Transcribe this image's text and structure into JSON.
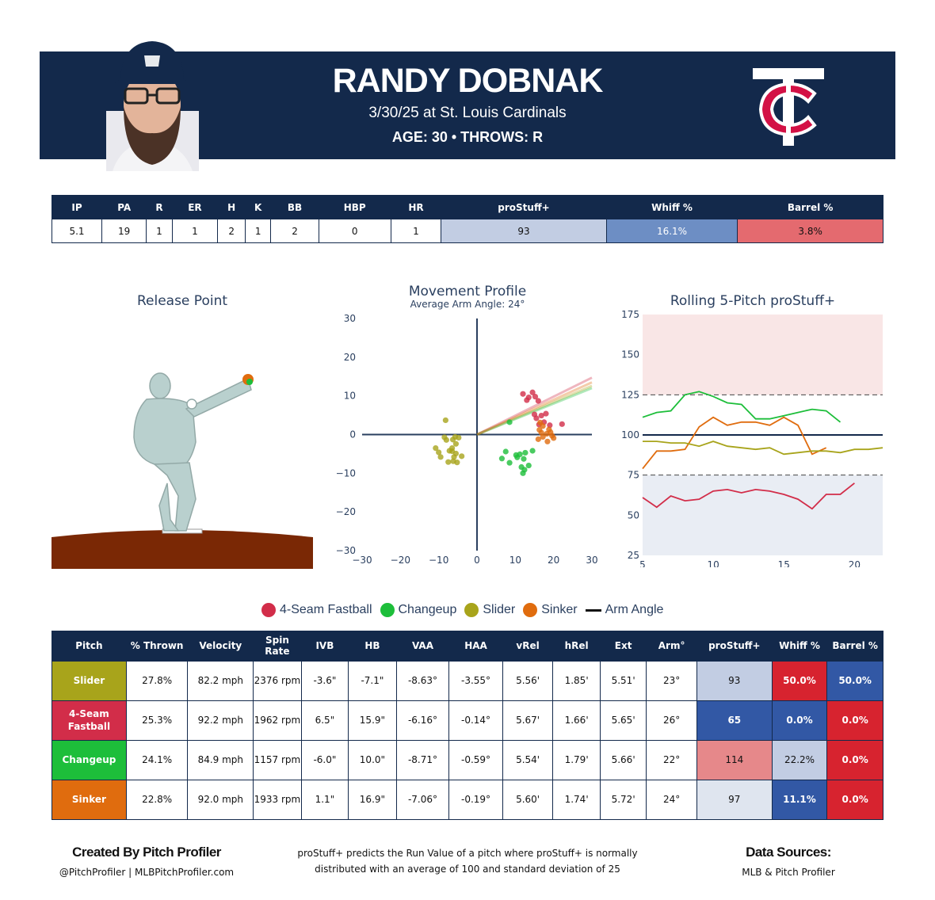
{
  "header": {
    "player_name": "RANDY DOBNAK",
    "game_line": "3/30/25 at St. Louis Cardinals",
    "bio_line": "AGE: 30 • THROWS: R",
    "logo_icon": "twins-tc-logo-icon",
    "headshot_icon": "player-headshot-icon",
    "bg_color": "#13294b"
  },
  "summary": {
    "headers": [
      "IP",
      "PA",
      "R",
      "ER",
      "H",
      "K",
      "BB",
      "HBP",
      "HR",
      "proStuff+",
      "Whiff %",
      "Barrel %"
    ],
    "values": [
      "5.1",
      "19",
      "1",
      "1",
      "2",
      "1",
      "2",
      "0",
      "1",
      "93",
      "16.1%",
      "3.8%"
    ],
    "value_colors": [
      "#ffffff",
      "#ffffff",
      "#ffffff",
      "#ffffff",
      "#ffffff",
      "#ffffff",
      "#ffffff",
      "#ffffff",
      "#ffffff",
      "#c2cde3",
      "#6d8ec4",
      "#e46a6f"
    ]
  },
  "pitch_types": [
    {
      "name": "4-Seam Fastball",
      "color": "#d22d49"
    },
    {
      "name": "Changeup",
      "color": "#1dbe3a"
    },
    {
      "name": "Slider",
      "color": "#a8a41b"
    },
    {
      "name": "Sinker",
      "color": "#e06c0e"
    }
  ],
  "legend": {
    "arm_angle_label": "Arm Angle"
  },
  "release_point": {
    "title": "Release Point"
  },
  "chart_data": [
    {
      "type": "scatter",
      "title": "Movement Profile",
      "subtitle": "Average Arm Angle: 24°",
      "xlim": [
        -30,
        30
      ],
      "ylim": [
        -30,
        30
      ],
      "xticks": [
        -30,
        -20,
        -10,
        0,
        10,
        20,
        30
      ],
      "yticks": [
        -30,
        -20,
        -10,
        0,
        10,
        20,
        30
      ],
      "arm_angle_lines": [
        {
          "series": "Slider",
          "slope": 0.42
        },
        {
          "series": "4-Seam Fastball",
          "slope": 0.49
        },
        {
          "series": "Changeup",
          "slope": 0.4
        },
        {
          "series": "Sinker",
          "slope": 0.45
        }
      ],
      "series": [
        {
          "name": "4-Seam Fastball",
          "points": [
            [
              12,
              10.5
            ],
            [
              13.5,
              9.6
            ],
            [
              14.5,
              10.9
            ],
            [
              15.2,
              9.8
            ],
            [
              16,
              8.7
            ],
            [
              13,
              8.9
            ],
            [
              15.5,
              4.2
            ],
            [
              16.8,
              4.9
            ],
            [
              17.5,
              3.2
            ],
            [
              16.2,
              2.6
            ],
            [
              18,
              5.4
            ],
            [
              19,
              2.4
            ],
            [
              22.2,
              2.7
            ],
            [
              15,
              5.2
            ]
          ]
        },
        {
          "name": "Changeup",
          "points": [
            [
              8.5,
              3.2
            ],
            [
              7.5,
              -4.4
            ],
            [
              6.5,
              -6.2
            ],
            [
              8.5,
              -7.3
            ],
            [
              10.2,
              -5.3
            ],
            [
              11.2,
              -5.1
            ],
            [
              10.5,
              -5.9
            ],
            [
              12.2,
              -6.3
            ],
            [
              12.6,
              -4.7
            ],
            [
              11.6,
              -8.4
            ],
            [
              12.4,
              -9.1
            ],
            [
              13.5,
              -8
            ],
            [
              14.5,
              -4.2
            ],
            [
              12,
              -10
            ]
          ]
        },
        {
          "name": "Slider",
          "points": [
            [
              -8.2,
              3.7
            ],
            [
              -8,
              -1.4
            ],
            [
              -10.8,
              -3.5
            ],
            [
              -10,
              -4.6
            ],
            [
              -9.5,
              -5.8
            ],
            [
              -7.2,
              -4.2
            ],
            [
              -6.5,
              -4.3
            ],
            [
              -5.5,
              -4.9
            ],
            [
              -4,
              -5.6
            ],
            [
              -6.5,
              -3.5
            ],
            [
              -6,
              -5.8
            ],
            [
              -7.5,
              -7.1
            ],
            [
              -6.2,
              -6.9
            ],
            [
              -5.2,
              -7.2
            ],
            [
              -8.5,
              -0.7
            ],
            [
              -6.3,
              -1.3
            ],
            [
              -5.7,
              -0.6
            ],
            [
              -4.8,
              -0.8
            ],
            [
              -5.5,
              -2.4
            ]
          ]
        },
        {
          "name": "Sinker",
          "points": [
            [
              16.5,
              3.1
            ],
            [
              17.2,
              2.2
            ],
            [
              18.8,
              1.3
            ],
            [
              16.8,
              0.5
            ],
            [
              18.2,
              0.2
            ],
            [
              17.2,
              -0.6
            ],
            [
              19.6,
              -0.3
            ],
            [
              16,
              -1.2
            ],
            [
              18.4,
              -1.8
            ],
            [
              19.2,
              0.6
            ],
            [
              16.3,
              1.2
            ],
            [
              20,
              -0.9
            ]
          ]
        }
      ]
    },
    {
      "type": "line",
      "title": "Rolling 5-Pitch proStuff+",
      "xlim": [
        5,
        22
      ],
      "ylim": [
        25,
        175
      ],
      "xticks": [
        5,
        10,
        15,
        20
      ],
      "yticks": [
        25,
        50,
        75,
        100,
        125,
        150,
        175
      ],
      "reference_line": 100,
      "band_lines": [
        75,
        125
      ],
      "bands": [
        {
          "from": 125,
          "to": 175,
          "color": "#f9e6e6"
        },
        {
          "from": 25,
          "to": 75,
          "color": "#e9edf4"
        }
      ],
      "series": [
        {
          "name": "Changeup",
          "x": [
            5,
            6,
            7,
            8,
            9,
            10,
            11,
            12,
            13,
            14,
            15,
            16,
            17,
            18,
            19
          ],
          "y": [
            111,
            114,
            115,
            125,
            127,
            124,
            120,
            119,
            110,
            110,
            112,
            114,
            116,
            115,
            108
          ]
        },
        {
          "name": "Sinker",
          "x": [
            5,
            6,
            7,
            8,
            9,
            10,
            11,
            12,
            13,
            14,
            15,
            16,
            17,
            18
          ],
          "y": [
            79,
            90,
            90,
            91,
            105,
            111,
            106,
            108,
            108,
            106,
            111,
            106,
            88,
            92
          ]
        },
        {
          "name": "Slider",
          "x": [
            5,
            6,
            7,
            8,
            9,
            10,
            11,
            12,
            13,
            14,
            15,
            16,
            17,
            18,
            19,
            20,
            21,
            22
          ],
          "y": [
            96,
            96,
            95,
            95,
            93,
            96,
            93,
            92,
            91,
            92,
            88,
            89,
            90,
            90,
            89,
            91,
            91,
            92
          ]
        },
        {
          "name": "4-Seam Fastball",
          "x": [
            5,
            6,
            7,
            8,
            9,
            10,
            11,
            12,
            13,
            14,
            15,
            16,
            17,
            18,
            19,
            20
          ],
          "y": [
            61,
            55,
            62,
            59,
            60,
            65,
            66,
            64,
            66,
            65,
            63,
            60,
            54,
            63,
            63,
            70
          ]
        }
      ]
    }
  ],
  "pitch_table": {
    "headers": [
      "Pitch",
      "% Thrown",
      "Velocity",
      "Spin Rate",
      "IVB",
      "HB",
      "VAA",
      "HAA",
      "vRel",
      "hRel",
      "Ext",
      "Arm°",
      "proStuff+",
      "Whiff %",
      "Barrel %"
    ],
    "rows": [
      {
        "pitch": "Slider",
        "pitch_color": "#a8a41b",
        "cells": [
          "27.8%",
          "82.2 mph",
          "2376 rpm",
          "-3.6\"",
          "-7.1\"",
          "-8.63°",
          "-3.55°",
          "5.56'",
          "1.85'",
          "5.51'",
          "23°"
        ],
        "stuff": "93",
        "whiff": "50.0%",
        "barrel": "50.0%",
        "stuff_color": "#c2cde3",
        "whiff_color": "#d7232f",
        "barrel_color": "#3258a5"
      },
      {
        "pitch": "4-Seam Fastball",
        "pitch_color": "#d22d49",
        "cells": [
          "25.3%",
          "92.2 mph",
          "1962 rpm",
          "6.5\"",
          "15.9\"",
          "-6.16°",
          "-0.14°",
          "5.67'",
          "1.66'",
          "5.65'",
          "26°"
        ],
        "stuff": "65",
        "whiff": "0.0%",
        "barrel": "0.0%",
        "stuff_color": "#3258a5",
        "whiff_color": "#3258a5",
        "barrel_color": "#d7232f"
      },
      {
        "pitch": "Changeup",
        "pitch_color": "#1dbe3a",
        "cells": [
          "24.1%",
          "84.9 mph",
          "1157 rpm",
          "-6.0\"",
          "10.0\"",
          "-8.71°",
          "-0.59°",
          "5.54'",
          "1.79'",
          "5.66'",
          "22°"
        ],
        "stuff": "114",
        "whiff": "22.2%",
        "barrel": "0.0%",
        "stuff_color": "#e6888a",
        "whiff_color": "#c2cde3",
        "barrel_color": "#d7232f"
      },
      {
        "pitch": "Sinker",
        "pitch_color": "#e06c0e",
        "cells": [
          "22.8%",
          "92.0 mph",
          "1933 rpm",
          "1.1\"",
          "16.9\"",
          "-7.06°",
          "-0.19°",
          "5.60'",
          "1.74'",
          "5.72'",
          "24°"
        ],
        "stuff": "97",
        "whiff": "11.1%",
        "barrel": "0.0%",
        "stuff_color": "#dfe5ef",
        "whiff_color": "#3258a5",
        "barrel_color": "#d7232f"
      }
    ]
  },
  "footer": {
    "left_title": "Created By Pitch Profiler",
    "left_sub": "@PitchProfiler | MLBPitchProfiler.com",
    "note_line1": "proStuff+ predicts the Run Value of a pitch where proStuff+ is normally",
    "note_line2": "distributed with an average of 100 and standard deviation of 25",
    "right_title": "Data Sources:",
    "right_sub": "MLB & Pitch Profiler"
  }
}
